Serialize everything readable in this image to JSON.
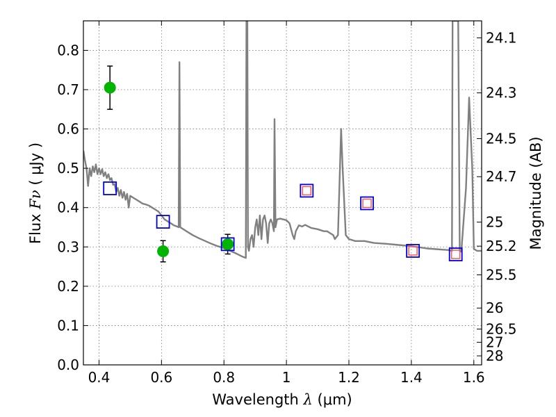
{
  "chart_data": {
    "type": "scatter",
    "xlabel": {
      "text": "Wavelength",
      "symbol": "λ",
      "unit": "(μm)"
    },
    "ylabel": {
      "text": "Flux",
      "symbol": "Fν",
      "unit": "( μJy )"
    },
    "y2label": "Magnitude (AB)",
    "xlim": [
      0.35,
      1.625
    ],
    "ylim": [
      0.0,
      0.875
    ],
    "grid": true,
    "x_ticks": [
      {
        "v": 0.4,
        "label": "0.4"
      },
      {
        "v": 0.6,
        "label": "0.6"
      },
      {
        "v": 0.8,
        "label": "0.8"
      },
      {
        "v": 1.0,
        "label": "1"
      },
      {
        "v": 1.2,
        "label": "1.2"
      },
      {
        "v": 1.4,
        "label": "1.4"
      },
      {
        "v": 1.6,
        "label": "1.6"
      }
    ],
    "y_ticks": [
      {
        "v": 0.0,
        "label": "0.0"
      },
      {
        "v": 0.1,
        "label": "0.1"
      },
      {
        "v": 0.2,
        "label": "0.2"
      },
      {
        "v": 0.3,
        "label": "0.3"
      },
      {
        "v": 0.4,
        "label": "0.4"
      },
      {
        "v": 0.5,
        "label": "0.5"
      },
      {
        "v": 0.6,
        "label": "0.6"
      },
      {
        "v": 0.7,
        "label": "0.7"
      },
      {
        "v": 0.8,
        "label": "0.8"
      }
    ],
    "y2_ticks": [
      {
        "label": "24.1"
      },
      {
        "label": "24.3"
      },
      {
        "label": "24.5"
      },
      {
        "label": "24.7"
      },
      {
        "label": "25"
      },
      {
        "label": "25.2"
      },
      {
        "label": "25.5"
      },
      {
        "label": "26"
      },
      {
        "label": "26.5"
      },
      {
        "label": "27"
      },
      {
        "label": "28"
      }
    ],
    "series": [
      {
        "type": "line",
        "color": "#808080",
        "points": [
          [
            0.35,
            0.545
          ],
          [
            0.355,
            0.52
          ],
          [
            0.36,
            0.5
          ],
          [
            0.365,
            0.455
          ],
          [
            0.37,
            0.5
          ],
          [
            0.375,
            0.48
          ],
          [
            0.38,
            0.505
          ],
          [
            0.385,
            0.49
          ],
          [
            0.39,
            0.51
          ],
          [
            0.395,
            0.485
          ],
          [
            0.4,
            0.5
          ],
          [
            0.405,
            0.485
          ],
          [
            0.41,
            0.498
          ],
          [
            0.415,
            0.48
          ],
          [
            0.42,
            0.49
          ],
          [
            0.425,
            0.475
          ],
          [
            0.43,
            0.485
          ],
          [
            0.435,
            0.47
          ],
          [
            0.44,
            0.475
          ],
          [
            0.445,
            0.458
          ],
          [
            0.45,
            0.46
          ],
          [
            0.455,
            0.44
          ],
          [
            0.46,
            0.45
          ],
          [
            0.465,
            0.43
          ],
          [
            0.47,
            0.445
          ],
          [
            0.475,
            0.425
          ],
          [
            0.48,
            0.44
          ],
          [
            0.485,
            0.42
          ],
          [
            0.49,
            0.435
          ],
          [
            0.495,
            0.4
          ],
          [
            0.5,
            0.43
          ],
          [
            0.51,
            0.425
          ],
          [
            0.52,
            0.42
          ],
          [
            0.53,
            0.415
          ],
          [
            0.54,
            0.41
          ],
          [
            0.55,
            0.408
          ],
          [
            0.56,
            0.405
          ],
          [
            0.57,
            0.4
          ],
          [
            0.58,
            0.395
          ],
          [
            0.59,
            0.39
          ],
          [
            0.6,
            0.38
          ],
          [
            0.61,
            0.37
          ],
          [
            0.62,
            0.365
          ],
          [
            0.63,
            0.36
          ],
          [
            0.64,
            0.355
          ],
          [
            0.65,
            0.352
          ],
          [
            0.655,
            0.35
          ],
          [
            0.6575,
            0.77
          ],
          [
            0.66,
            0.35
          ],
          [
            0.67,
            0.345
          ],
          [
            0.68,
            0.34
          ],
          [
            0.7,
            0.33
          ],
          [
            0.72,
            0.322
          ],
          [
            0.74,
            0.315
          ],
          [
            0.76,
            0.308
          ],
          [
            0.78,
            0.302
          ],
          [
            0.8,
            0.297
          ],
          [
            0.82,
            0.29
          ],
          [
            0.84,
            0.283
          ],
          [
            0.86,
            0.275
          ],
          [
            0.87,
            0.272
          ],
          [
            0.872,
            0.875
          ],
          [
            0.875,
            0.875
          ],
          [
            0.877,
            0.3
          ],
          [
            0.88,
            0.29
          ],
          [
            0.885,
            0.32
          ],
          [
            0.89,
            0.33
          ],
          [
            0.895,
            0.3
          ],
          [
            0.9,
            0.35
          ],
          [
            0.905,
            0.37
          ],
          [
            0.91,
            0.33
          ],
          [
            0.915,
            0.38
          ],
          [
            0.92,
            0.32
          ],
          [
            0.925,
            0.37
          ],
          [
            0.93,
            0.38
          ],
          [
            0.935,
            0.36
          ],
          [
            0.94,
            0.31
          ],
          [
            0.945,
            0.36
          ],
          [
            0.95,
            0.37
          ],
          [
            0.955,
            0.36
          ],
          [
            0.96,
            0.34
          ],
          [
            0.962,
            0.625
          ],
          [
            0.965,
            0.35
          ],
          [
            0.97,
            0.37
          ],
          [
            0.98,
            0.372
          ],
          [
            0.99,
            0.37
          ],
          [
            1.0,
            0.368
          ],
          [
            1.01,
            0.36
          ],
          [
            1.02,
            0.33
          ],
          [
            1.025,
            0.32
          ],
          [
            1.03,
            0.34
          ],
          [
            1.04,
            0.355
          ],
          [
            1.05,
            0.352
          ],
          [
            1.06,
            0.356
          ],
          [
            1.07,
            0.352
          ],
          [
            1.08,
            0.348
          ],
          [
            1.1,
            0.345
          ],
          [
            1.12,
            0.34
          ],
          [
            1.13,
            0.34
          ],
          [
            1.14,
            0.335
          ],
          [
            1.15,
            0.33
          ],
          [
            1.155,
            0.32
          ],
          [
            1.16,
            0.325
          ],
          [
            1.165,
            0.33
          ],
          [
            1.175,
            0.6
          ],
          [
            1.18,
            0.5
          ],
          [
            1.19,
            0.33
          ],
          [
            1.2,
            0.32
          ],
          [
            1.22,
            0.315
          ],
          [
            1.25,
            0.315
          ],
          [
            1.28,
            0.31
          ],
          [
            1.32,
            0.308
          ],
          [
            1.36,
            0.305
          ],
          [
            1.4,
            0.302
          ],
          [
            1.45,
            0.296
          ],
          [
            1.5,
            0.293
          ],
          [
            1.52,
            0.292
          ],
          [
            1.53,
            0.29
          ],
          [
            1.532,
            0.875
          ],
          [
            1.55,
            0.875
          ],
          [
            1.555,
            0.29
          ],
          [
            1.56,
            0.288
          ],
          [
            1.575,
            0.45
          ],
          [
            1.585,
            0.68
          ],
          [
            1.595,
            0.5
          ],
          [
            1.6,
            0.295
          ],
          [
            1.61,
            0.29
          ],
          [
            1.625,
            0.29
          ]
        ]
      },
      {
        "type": "scatter",
        "marker": "circle",
        "color": "#00b400",
        "points": [
          {
            "x": 0.435,
            "y": 0.705,
            "err": 0.055
          },
          {
            "x": 0.605,
            "y": 0.289,
            "err": 0.027
          },
          {
            "x": 0.812,
            "y": 0.307,
            "err": 0.025
          }
        ]
      },
      {
        "type": "scatter",
        "marker": "square-open",
        "color": "#0000dd",
        "points": [
          {
            "x": 0.435,
            "y": 0.449
          },
          {
            "x": 0.605,
            "y": 0.364
          },
          {
            "x": 0.812,
            "y": 0.307
          },
          {
            "x": 1.065,
            "y": 0.443
          },
          {
            "x": 1.258,
            "y": 0.411
          },
          {
            "x": 1.405,
            "y": 0.29
          },
          {
            "x": 1.542,
            "y": 0.281
          }
        ]
      },
      {
        "type": "scatter",
        "marker": "square-open-small",
        "color": "#ff5555",
        "points": [
          {
            "x": 1.065,
            "y": 0.443
          },
          {
            "x": 1.258,
            "y": 0.411
          },
          {
            "x": 1.405,
            "y": 0.29
          },
          {
            "x": 1.542,
            "y": 0.281
          }
        ]
      }
    ]
  }
}
